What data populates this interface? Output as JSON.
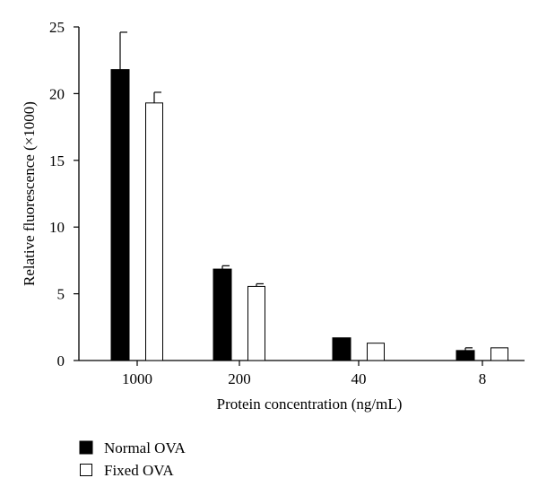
{
  "chart_data": {
    "type": "bar",
    "categories": [
      "1000",
      "200",
      "40",
      "8"
    ],
    "series": [
      {
        "name": "Normal OVA",
        "values": [
          21.8,
          6.85,
          1.7,
          0.75
        ],
        "errors": [
          2.8,
          0.25,
          0,
          0.2
        ],
        "color": "#000000"
      },
      {
        "name": "Fixed OVA",
        "values": [
          19.3,
          5.55,
          1.3,
          0.95
        ],
        "errors": [
          0.8,
          0.2,
          0,
          0
        ],
        "color": "#ffffff"
      }
    ],
    "xlabel": "Protein concentration (ng/mL)",
    "ylabel": "Relative fluorescence (×1000)",
    "ylim": [
      0,
      25
    ],
    "yticks": [
      "0",
      "5",
      "10",
      "15",
      "20",
      "25"
    ],
    "grid": false,
    "legend": "bottom-left"
  }
}
